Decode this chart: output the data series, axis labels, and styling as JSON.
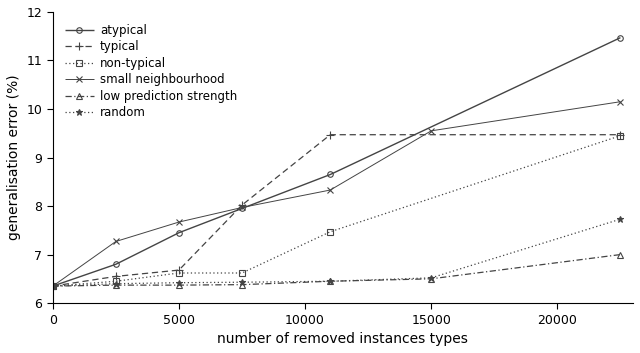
{
  "title": "",
  "xlabel": "number of removed instances types",
  "ylabel": "generalisation error (%)",
  "xlim": [
    0,
    23000
  ],
  "ylim": [
    6.0,
    12.0
  ],
  "xticks": [
    0,
    5000,
    10000,
    15000,
    20000
  ],
  "yticks": [
    6.0,
    7.0,
    8.0,
    9.0,
    10.0,
    11.0,
    12.0
  ],
  "series": [
    {
      "label": "atypical",
      "x": [
        0,
        2500,
        5000,
        7500,
        11000,
        22500
      ],
      "y": [
        6.35,
        6.8,
        7.45,
        7.95,
        8.65,
        11.47
      ],
      "color": "#444444",
      "linestyle": "solid",
      "marker": "o",
      "markersize": 4,
      "linewidth": 1.0,
      "open_marker": true
    },
    {
      "label": "typical",
      "x": [
        0,
        2500,
        5000,
        7500,
        11000,
        22500
      ],
      "y": [
        6.35,
        6.55,
        6.68,
        8.02,
        9.47,
        9.47
      ],
      "color": "#444444",
      "linestyle": "dashed",
      "marker": "+",
      "markersize": 6,
      "linewidth": 0.9,
      "open_marker": false
    },
    {
      "label": "non-typical",
      "x": [
        0,
        2500,
        5000,
        7500,
        11000,
        22500
      ],
      "y": [
        6.35,
        6.45,
        6.62,
        6.62,
        7.47,
        9.45
      ],
      "color": "#444444",
      "linestyle": "dotted",
      "marker": "s",
      "markersize": 4,
      "linewidth": 0.9,
      "open_marker": true
    },
    {
      "label": "small neighbourhood",
      "x": [
        0,
        2500,
        5000,
        7500,
        11000,
        15000,
        22500
      ],
      "y": [
        6.35,
        7.27,
        7.67,
        7.97,
        8.33,
        9.55,
        10.15
      ],
      "color": "#444444",
      "linestyle": "solid",
      "marker": "x",
      "markersize": 5,
      "linewidth": 0.7,
      "open_marker": false
    },
    {
      "label": "low prediction strength",
      "x": [
        0,
        2500,
        5000,
        7500,
        11000,
        15000,
        22500
      ],
      "y": [
        6.35,
        6.37,
        6.37,
        6.38,
        6.45,
        6.5,
        7.0
      ],
      "color": "#444444",
      "linestyle": "dashdot",
      "marker": "^",
      "markersize": 4,
      "linewidth": 0.9,
      "open_marker": true
    },
    {
      "label": "random",
      "x": [
        0,
        2500,
        5000,
        7500,
        11000,
        15000,
        22500
      ],
      "y": [
        6.35,
        6.4,
        6.42,
        6.43,
        6.45,
        6.52,
        7.73
      ],
      "color": "#444444",
      "linestyle": "dotted",
      "marker": "*",
      "markersize": 5,
      "linewidth": 0.9,
      "open_marker": false
    }
  ],
  "legend_loc": "upper left",
  "legend_fontsize": 8.5,
  "tick_fontsize": 9,
  "label_fontsize": 10,
  "background_color": "#ffffff"
}
